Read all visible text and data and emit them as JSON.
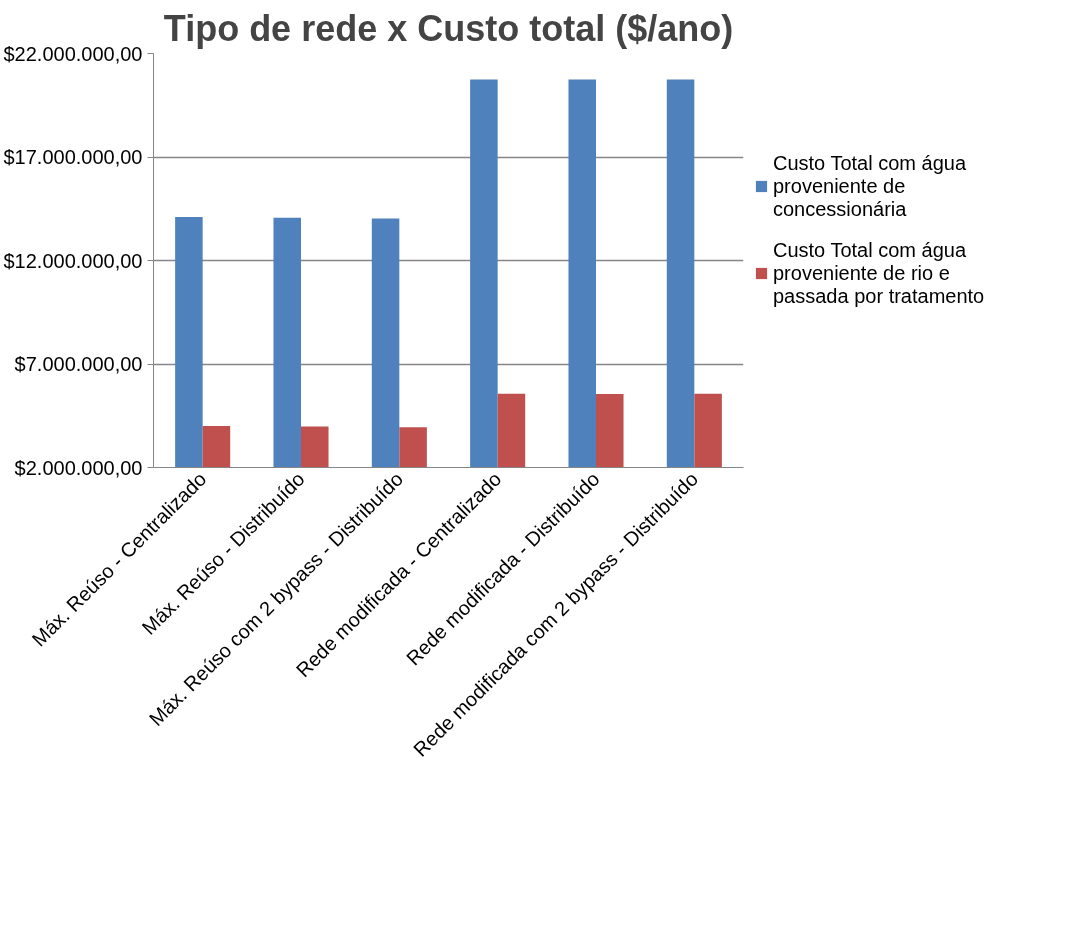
{
  "chart_data": {
    "type": "bar",
    "title": "Tipo de rede x Custo total ($/ano)",
    "categories": [
      "Máx. Reúso - Centralizado",
      "Máx. Reúso - Distribuído",
      "Máx. Reúso com 2 bypass - Distribuído",
      "Rede modificada - Centralizado",
      "Rede modificada - Distribuído",
      "Rede modificada com 2 bypass - Distribuído"
    ],
    "series": [
      {
        "name": "Custo Total com água proveniente de concessionária",
        "color": "#4f81bd",
        "values": [
          14100000,
          14060000,
          14030000,
          20740000,
          20740000,
          20740000
        ]
      },
      {
        "name": "Custo Total com água proveniente de rio e passada por tratamento",
        "color": "#c0504d",
        "values": [
          4000000,
          3980000,
          3950000,
          5560000,
          5550000,
          5560000
        ]
      }
    ],
    "ylim": [
      2000000,
      22000000
    ],
    "yticks": [
      {
        "value": 2000000,
        "label": "$2.000.000,00"
      },
      {
        "value": 7000000,
        "label": "$7.000.000,00"
      },
      {
        "value": 12000000,
        "label": "$12.000.000,00"
      },
      {
        "value": 17000000,
        "label": "$17.000.000,00"
      },
      {
        "value": 22000000,
        "label": "$22.000.000,00"
      }
    ],
    "grid": "y",
    "legend": "right"
  }
}
